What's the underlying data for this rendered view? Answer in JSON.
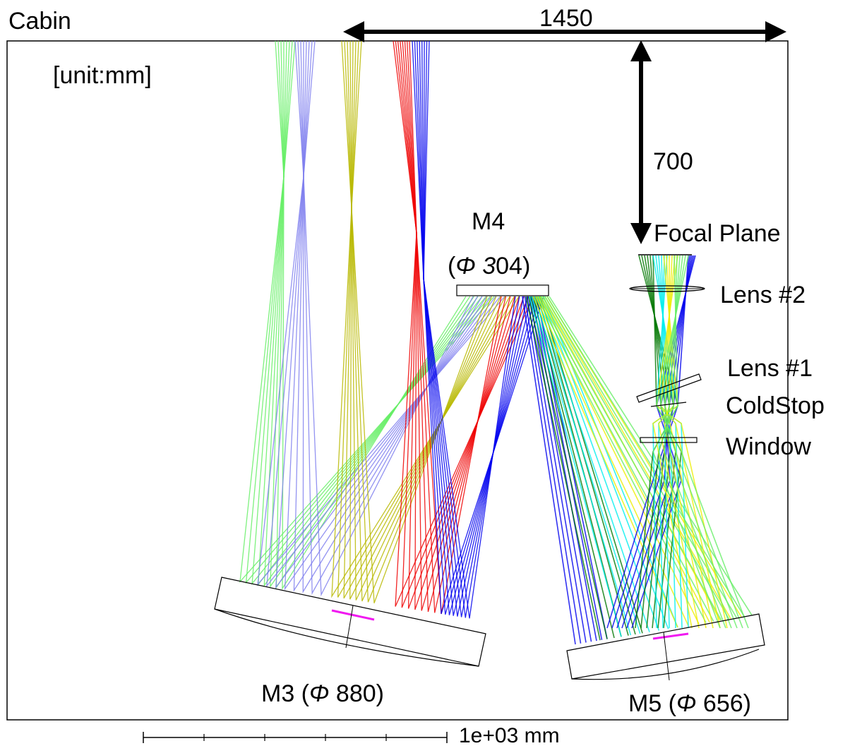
{
  "labels": {
    "cabin": "Cabin",
    "unit": "[unit:mm]",
    "dim_width": "1450",
    "dim_height": "700",
    "focal_plane": "Focal Plane",
    "m4_name": "M4",
    "m4_diam_open": "(",
    "m4_diam_sym": "Φ 3",
    "m4_diam_val": "04)",
    "lens2": "Lens #2",
    "lens1": "Lens #1",
    "coldstop": "ColdStop",
    "window": "Window",
    "m3_name": "M3 (",
    "m3_diam_sym": "Φ",
    "m3_diam_val": " 880)",
    "m5_name": "M5 (",
    "m5_diam_sym": "Φ",
    "m5_diam_val": " 656)",
    "scale": "1e+03 mm"
  },
  "colors": {
    "green": "#66ee66",
    "lavender": "#8080ee",
    "olive": "#b8b800",
    "red": "#ee0000",
    "blue": "#0000ee",
    "yellow": "#eeee00",
    "cyan": "#00eeee",
    "darkgreen": "#007700",
    "magenta": "#ee00ee"
  }
}
